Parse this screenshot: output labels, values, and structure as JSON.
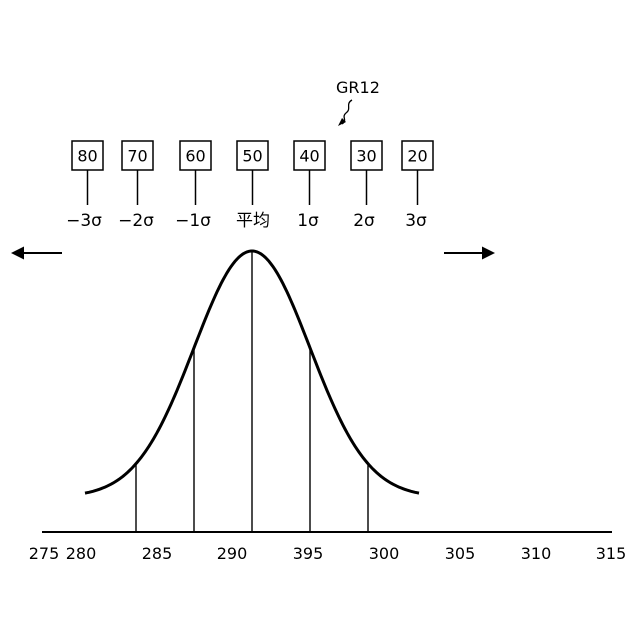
{
  "figure": {
    "reference_label": "GR12",
    "score_boxes": [
      "80",
      "70",
      "60",
      "50",
      "40",
      "30",
      "20"
    ],
    "sigma_labels": [
      "−3σ",
      "−2σ",
      "−1σ",
      "平均",
      "1σ",
      "2σ",
      "3σ"
    ],
    "axis_ticks": [
      "275",
      "280",
      "285",
      "290",
      "395",
      "300",
      "305",
      "310",
      "315"
    ],
    "left_arrow_icon": "arrow-left-icon",
    "right_arrow_icon": "arrow-right-icon"
  }
}
